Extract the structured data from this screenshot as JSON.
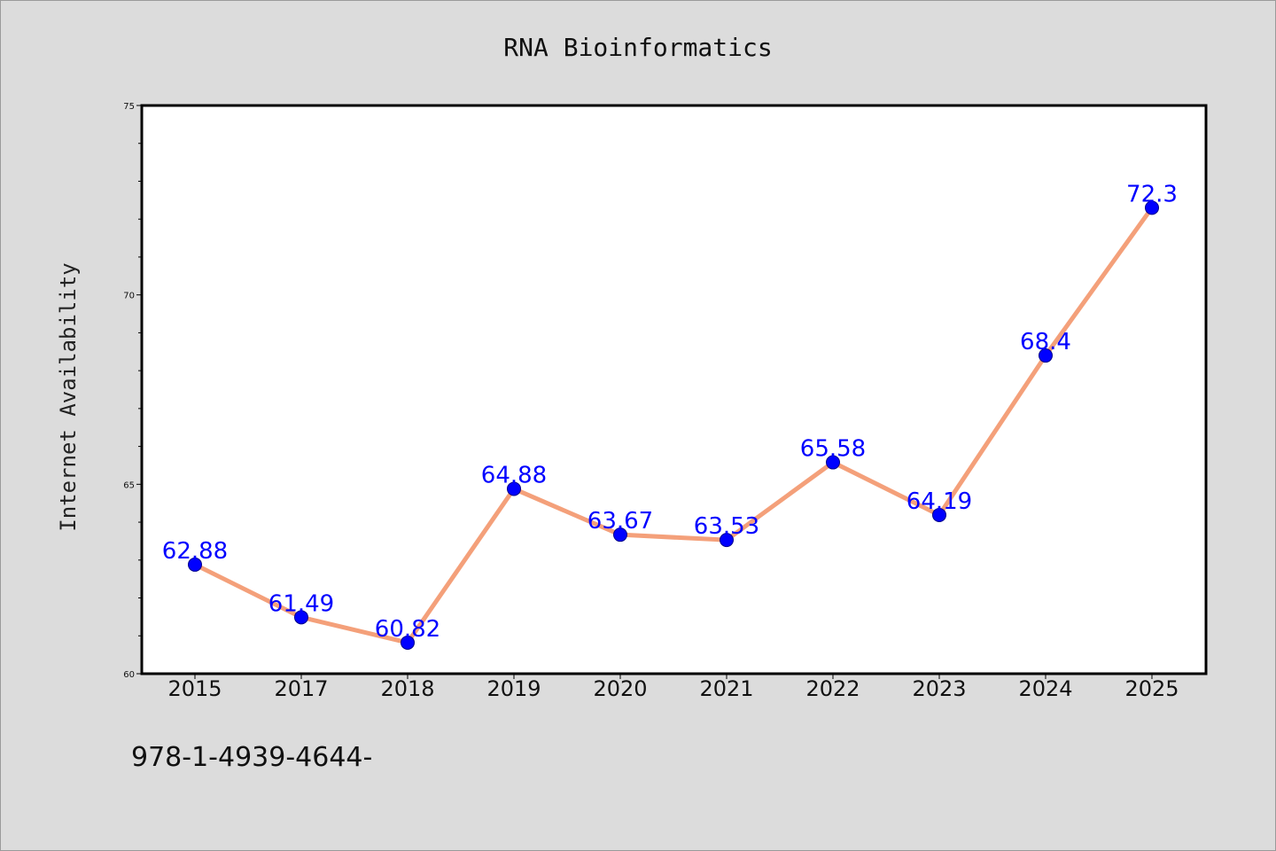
{
  "chart_data": {
    "type": "line",
    "title": "RNA Bioinformatics",
    "xlabel": "",
    "ylabel": "Internet Availability",
    "categories": [
      "2015",
      "2017",
      "2018",
      "2019",
      "2020",
      "2021",
      "2022",
      "2023",
      "2024",
      "2025"
    ],
    "series": [
      {
        "values": [
          62.88,
          61.49,
          60.82,
          64.88,
          63.67,
          63.53,
          65.58,
          64.19,
          68.4,
          72.3
        ],
        "data_labels": [
          "62.88",
          "61.49",
          "60.82",
          "64.88",
          "63.67",
          "63.53",
          "65.58",
          "64.19",
          "68.4",
          "72.3"
        ]
      }
    ],
    "ylim": [
      60,
      75
    ],
    "yticks": [
      "60",
      "65",
      "70",
      "75"
    ],
    "grid": false,
    "legend": "none",
    "colors": {
      "line": "#f4a07a",
      "marker": "#0000ff",
      "data_label": "#0000ff",
      "plot_background": "#ffffff",
      "figure_background": "#dcdcdc"
    }
  },
  "footer": {
    "text": "978-1-4939-4644-"
  }
}
